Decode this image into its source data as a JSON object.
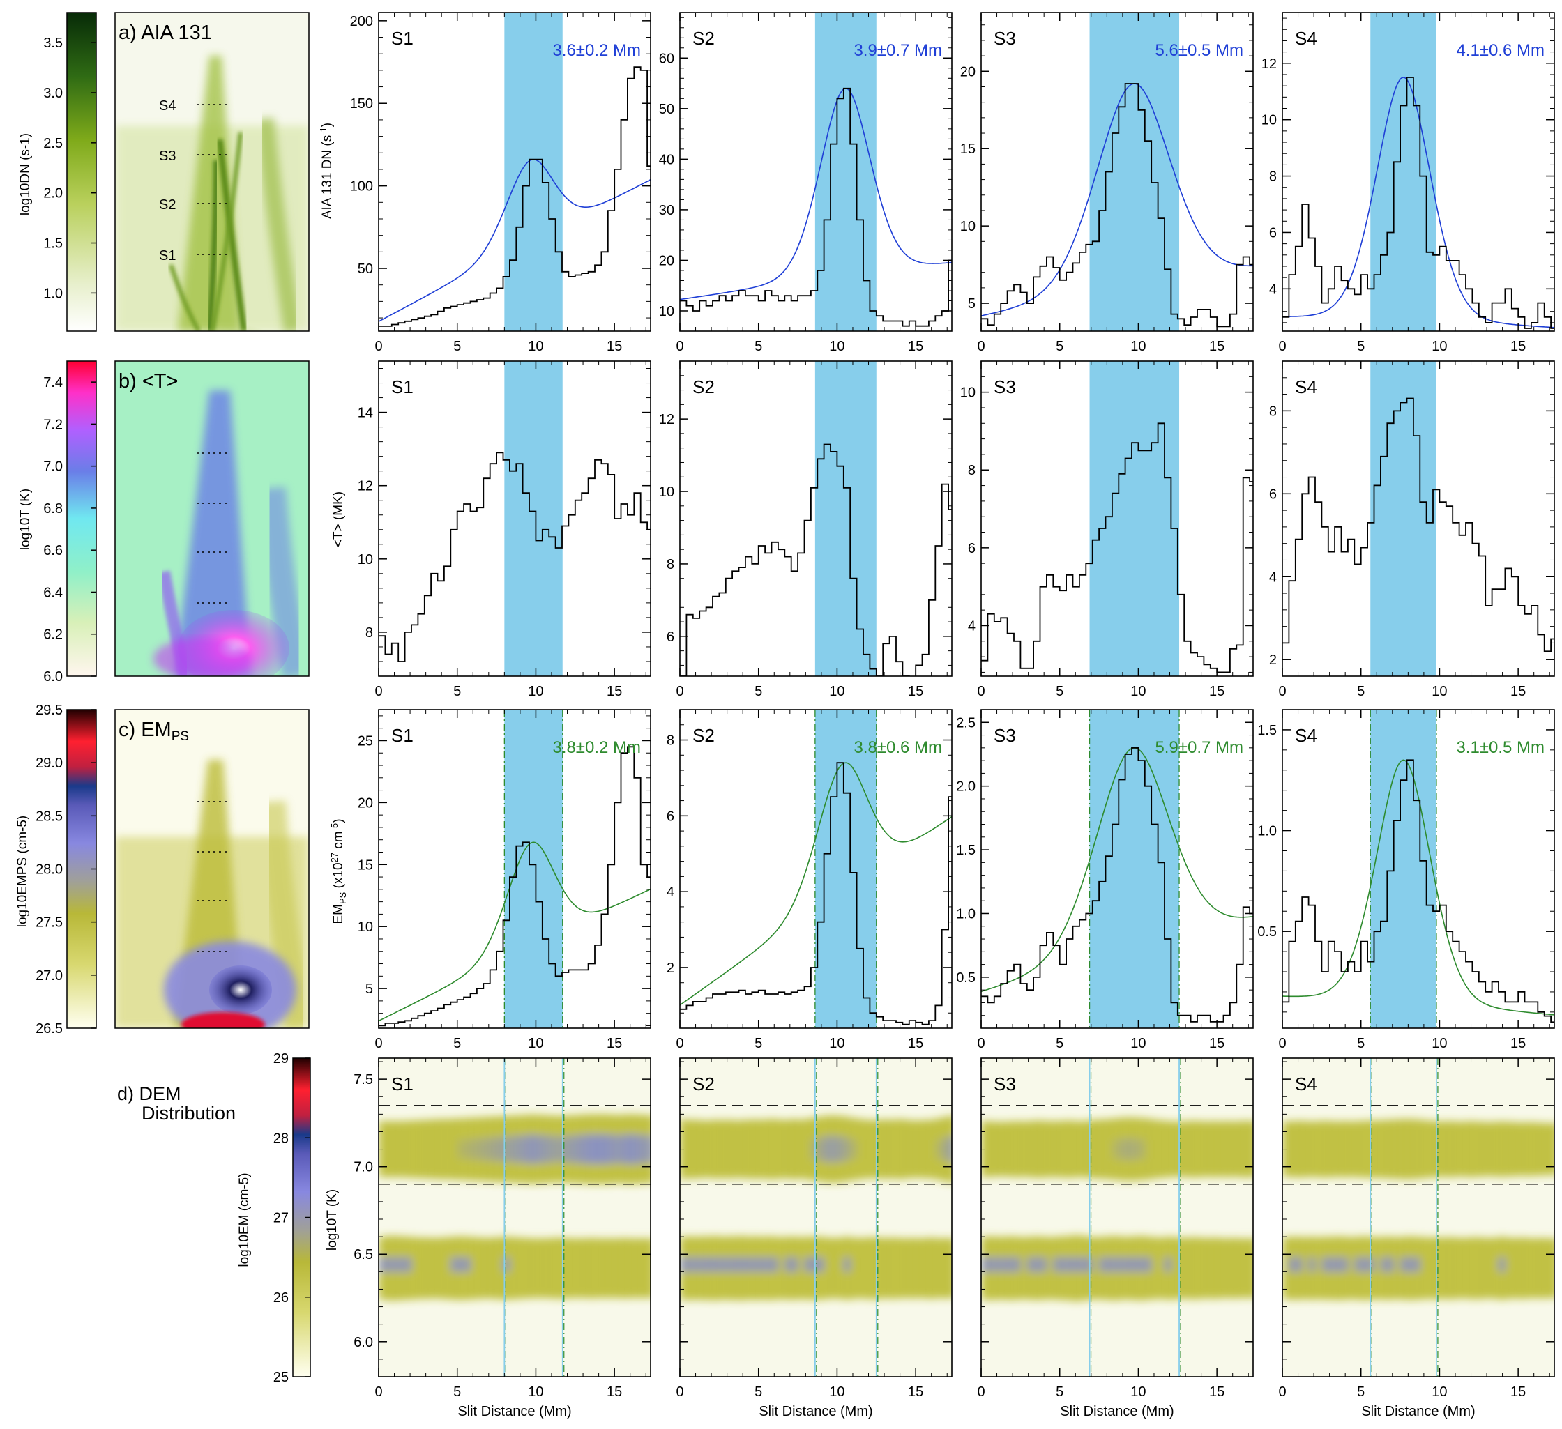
{
  "image_panels": {
    "a": {
      "label": "a) AIA 131",
      "colorbar_label": "log10DN (s-1)",
      "ticks": [
        "1.0",
        "1.5",
        "2.0",
        "2.5",
        "3.0",
        "3.5"
      ],
      "slits": [
        "S4",
        "S3",
        "S2",
        "S1"
      ]
    },
    "b": {
      "label": "b) <T>",
      "colorbar_label": "log10T (K)",
      "ticks": [
        "6.0",
        "6.2",
        "6.4",
        "6.6",
        "6.8",
        "7.0",
        "7.2",
        "7.4"
      ]
    },
    "c": {
      "label": "c) EMPS",
      "colorbar_label": "log10EMPS (cm-5)",
      "ticks": [
        "26.5",
        "27.0",
        "27.5",
        "28.0",
        "28.5",
        "29.0",
        "29.5"
      ]
    },
    "d": {
      "label_line1": "d) DEM",
      "label_line2": "Distribution",
      "colorbar_label": "log10EM (cm-5)",
      "ticks": [
        "25",
        "26",
        "27",
        "28",
        "29"
      ]
    }
  },
  "colors": {
    "band": "#87ceeb",
    "fit_blue": "#1f3fd6",
    "fit_green": "#2e8b2e",
    "dem_yellow": "#b8b828",
    "dem_blue": "#8088e0"
  },
  "row_labels": {
    "dn": "AIA 131 DN (s-1)",
    "t": "<T> (MK)",
    "em": "EMPS (x1027 cm-5)",
    "dem": "log10T (K)",
    "xlabel": "Slit Distance (Mm)"
  },
  "chart_data": {
    "x_ticks": [
      0,
      5,
      10,
      15
    ],
    "slits": [
      {
        "name": "S1",
        "band": [
          8.0,
          11.7
        ],
        "dn": {
          "ylim": [
            12,
            205
          ],
          "yticks": [
            50,
            100,
            150,
            200
          ],
          "width_label": "3.6±0.2 Mm",
          "values": [
            15,
            15,
            16,
            17,
            18,
            19,
            20,
            21,
            22,
            24,
            26,
            27,
            28,
            29,
            30,
            31,
            32,
            35,
            38,
            45,
            55,
            75,
            100,
            116,
            116,
            102,
            80,
            60,
            48,
            45,
            46,
            47,
            48,
            52,
            60,
            85,
            110,
            140,
            165,
            172,
            170,
            112
          ]
        },
        "t": {
          "ylim": [
            6.8,
            15.4
          ],
          "yticks": [
            8,
            10,
            12,
            14
          ],
          "values": [
            7.9,
            7.4,
            7.7,
            7.2,
            8.0,
            8.2,
            8.5,
            9.0,
            9.6,
            9.4,
            9.8,
            10.8,
            11.3,
            11.5,
            11.3,
            11.4,
            12.2,
            12.6,
            12.9,
            12.7,
            12.4,
            12.6,
            11.8,
            11.3,
            10.5,
            10.8,
            10.6,
            10.3,
            10.9,
            11.2,
            11.6,
            11.8,
            12.2,
            12.7,
            12.6,
            12.3,
            11.1,
            11.5,
            11.2,
            11.8,
            11.0,
            10.8
          ]
        },
        "em": {
          "ylim": [
            1.8,
            27.5
          ],
          "yticks": [
            5,
            10,
            15,
            20,
            25
          ],
          "width_label": "3.8±0.2 Mm",
          "values": [
            2.0,
            2.2,
            2.2,
            2.3,
            2.4,
            2.6,
            2.8,
            3.0,
            3.2,
            3.4,
            3.7,
            3.9,
            4.1,
            4.3,
            4.6,
            5.0,
            5.4,
            6.5,
            8.0,
            10.5,
            14.0,
            16.5,
            16.8,
            15.0,
            12.0,
            9.0,
            7.0,
            6.0,
            6.3,
            6.5,
            6.5,
            6.5,
            7.0,
            8.5,
            11.0,
            15.0,
            20.0,
            24.0,
            24.5,
            22.0,
            15.0,
            14.0
          ]
        },
        "dem": {
          "hot": [
            1.0,
            1.0,
            1.0,
            1.0,
            1.05,
            1.1,
            1.15,
            1.2,
            1.25,
            1.3,
            1.3,
            1.35,
            1.4,
            1.45,
            1.5,
            1.55,
            1.6,
            1.65,
            1.7,
            1.75,
            1.8,
            1.85,
            1.9,
            1.95,
            1.9,
            1.85,
            1.8,
            1.75,
            1.8,
            1.85,
            1.9,
            1.95,
            2.0,
            2.0,
            2.0,
            1.95,
            1.9,
            1.95,
            2.0,
            1.95,
            1.9,
            1.85
          ],
          "cool": [
            1.2,
            1.3,
            1.3,
            1.25,
            1.2,
            1.15,
            1.1,
            1.1,
            1.05,
            1.1,
            1.15,
            1.2,
            1.25,
            1.2,
            1.15,
            1.1,
            1.05,
            1.1,
            1.15,
            1.2,
            1.15,
            1.1,
            1.05,
            1.0,
            1.0,
            1.0,
            1.05,
            1.1,
            1.05,
            1.0,
            1.0,
            1.0,
            1.05,
            1.0,
            1.0,
            1.0,
            1.0,
            1.05,
            1.0,
            1.0,
            1.0,
            1.0
          ]
        }
      },
      {
        "name": "S2",
        "band": [
          8.6,
          12.5
        ],
        "dn": {
          "ylim": [
            6,
            69
          ],
          "yticks": [
            10,
            20,
            30,
            40,
            50,
            60
          ],
          "width_label": "3.9±0.7 Mm",
          "values": [
            12,
            11,
            10,
            12,
            11,
            12,
            13,
            12,
            13,
            14,
            13,
            13,
            12,
            14,
            13,
            12,
            13,
            12,
            13,
            13,
            14,
            18,
            28,
            43,
            52,
            54,
            43,
            28,
            16,
            10,
            9,
            8,
            8,
            8,
            7,
            8,
            7,
            7,
            8,
            9,
            10,
            20
          ]
        },
        "t": {
          "ylim": [
            4.9,
            13.6
          ],
          "yticks": [
            6,
            8,
            10,
            12
          ],
          "values": [
            4.9,
            6.6,
            6.5,
            6.7,
            6.8,
            7.1,
            7.2,
            7.6,
            7.8,
            7.9,
            8.2,
            8.0,
            8.5,
            8.3,
            8.6,
            8.4,
            8.2,
            7.8,
            8.3,
            9.2,
            10.1,
            10.9,
            11.3,
            11.1,
            10.7,
            10.1,
            7.6,
            6.2,
            5.5,
            5.1,
            4.9,
            5.8,
            6.0,
            5.3,
            4.9,
            4.8,
            5.2,
            5.5,
            7.0,
            8.5,
            10.2,
            9.5
          ]
        },
        "em": {
          "ylim": [
            0.4,
            8.8
          ],
          "yticks": [
            2,
            4,
            6,
            8
          ],
          "width_label": "3.8±0.6 Mm",
          "values": [
            0.9,
            1.0,
            1.1,
            1.1,
            1.2,
            1.3,
            1.3,
            1.35,
            1.35,
            1.4,
            1.3,
            1.35,
            1.4,
            1.3,
            1.3,
            1.35,
            1.3,
            1.35,
            1.4,
            1.5,
            2.0,
            3.2,
            5.0,
            6.5,
            7.4,
            6.6,
            4.5,
            2.5,
            1.2,
            0.8,
            0.7,
            0.6,
            0.6,
            0.55,
            0.5,
            0.6,
            0.55,
            0.5,
            0.6,
            1.0,
            3.0,
            6.5
          ]
        },
        "dem": {
          "hot": [
            1.3,
            1.2,
            1.2,
            1.1,
            1.1,
            1.2,
            1.15,
            1.2,
            1.1,
            1.15,
            1.2,
            1.25,
            1.2,
            1.3,
            1.3,
            1.2,
            1.2,
            1.3,
            1.2,
            1.35,
            1.5,
            1.65,
            1.8,
            1.8,
            1.75,
            1.6,
            1.45,
            1.3,
            1.2,
            1.15,
            1.2,
            1.25,
            1.2,
            1.3,
            1.2,
            1.1,
            1.1,
            1.15,
            1.2,
            1.4,
            1.6,
            1.8
          ],
          "cool": [
            1.2,
            1.25,
            1.2,
            1.25,
            1.25,
            1.3,
            1.2,
            1.25,
            1.25,
            1.3,
            1.2,
            1.25,
            1.2,
            1.25,
            1.2,
            1.15,
            1.2,
            1.2,
            1.15,
            1.2,
            1.2,
            1.2,
            1.1,
            1.05,
            1.1,
            1.2,
            1.1,
            1.05,
            1.1,
            1.15,
            1.1,
            1.05,
            1.1,
            1.05,
            1.0,
            1.05,
            1.0,
            1.05,
            1.1,
            1.0,
            1.05,
            1.0
          ]
        }
      },
      {
        "name": "S3",
        "band": [
          6.9,
          12.6
        ],
        "dn": {
          "ylim": [
            3.2,
            23.8
          ],
          "yticks": [
            5,
            10,
            15,
            20
          ],
          "width_label": "5.6±0.5 Mm",
          "values": [
            4.0,
            3.6,
            4.3,
            5.0,
            5.8,
            6.2,
            5.7,
            5.0,
            6.7,
            7.4,
            8.0,
            7.3,
            6.5,
            7.0,
            7.6,
            8.3,
            8.8,
            9.0,
            11.0,
            13.5,
            16.0,
            17.7,
            19.2,
            19.2,
            17.5,
            15.5,
            12.8,
            10.5,
            7.2,
            4.3,
            4.0,
            3.6,
            4.1,
            4.6,
            4.6,
            4.1,
            3.5,
            3.5,
            4.3,
            7.5,
            8.0,
            7.5
          ]
        },
        "t": {
          "ylim": [
            2.7,
            10.8
          ],
          "yticks": [
            4,
            6,
            8,
            10
          ],
          "values": [
            3.1,
            4.3,
            4.1,
            4.2,
            3.8,
            3.6,
            2.9,
            2.9,
            3.6,
            5.0,
            5.3,
            5.0,
            4.9,
            5.3,
            5.0,
            5.3,
            5.6,
            6.2,
            6.5,
            6.8,
            7.4,
            7.9,
            8.3,
            8.7,
            8.5,
            8.5,
            8.7,
            9.2,
            7.8,
            6.5,
            4.8,
            3.6,
            3.3,
            3.2,
            3.0,
            2.9,
            2.8,
            2.8,
            3.4,
            3.5,
            7.8,
            7.7
          ]
        },
        "em": {
          "ylim": [
            0.1,
            2.6
          ],
          "yticks": [
            0.5,
            1.0,
            1.5,
            2.0,
            2.5
          ],
          "width_label": "5.9±0.7 Mm",
          "values": [
            0.35,
            0.3,
            0.35,
            0.45,
            0.55,
            0.6,
            0.45,
            0.4,
            0.5,
            0.75,
            0.85,
            0.75,
            0.6,
            0.8,
            0.9,
            0.95,
            1.0,
            1.1,
            1.25,
            1.45,
            1.7,
            2.05,
            2.25,
            2.3,
            2.2,
            2.0,
            1.7,
            1.4,
            0.8,
            0.3,
            0.2,
            0.2,
            0.15,
            0.2,
            0.2,
            0.15,
            0.15,
            0.2,
            0.3,
            0.6,
            1.05,
            1.0
          ]
        },
        "dem": {
          "hot": [
            1.0,
            0.95,
            0.9,
            0.9,
            0.95,
            1.0,
            0.95,
            1.0,
            1.1,
            1.05,
            1.0,
            1.0,
            1.05,
            1.1,
            1.0,
            1.0,
            1.1,
            1.2,
            1.25,
            1.3,
            1.4,
            1.5,
            1.55,
            1.5,
            1.45,
            1.35,
            1.2,
            1.1,
            1.0,
            0.95,
            0.95,
            1.0,
            1.05,
            1.0,
            0.95,
            1.0,
            0.95,
            1.0,
            0.95,
            1.0,
            1.05,
            1.0
          ],
          "cool": [
            1.2,
            1.25,
            1.2,
            1.2,
            1.25,
            1.2,
            1.15,
            1.2,
            1.25,
            1.2,
            1.15,
            1.2,
            1.25,
            1.3,
            1.4,
            1.3,
            1.2,
            1.15,
            1.2,
            1.25,
            1.3,
            1.2,
            1.2,
            1.25,
            1.3,
            1.2,
            1.15,
            1.1,
            1.2,
            1.15,
            1.1,
            1.1,
            1.15,
            1.1,
            1.05,
            1.1,
            1.05,
            1.0,
            1.05,
            1.0,
            1.0,
            1.0
          ]
        }
      },
      {
        "name": "S4",
        "band": [
          5.6,
          9.8
        ],
        "dn": {
          "ylim": [
            2.5,
            13.8
          ],
          "yticks": [
            4,
            6,
            8,
            10,
            12
          ],
          "width_label": "4.1±0.6 Mm",
          "values": [
            3.0,
            4.5,
            5.5,
            7.0,
            5.8,
            4.8,
            3.5,
            4.0,
            4.8,
            4.3,
            4.0,
            3.8,
            4.5,
            4.0,
            4.5,
            5.2,
            6.0,
            8.5,
            10.5,
            11.5,
            10.5,
            8.0,
            5.3,
            5.2,
            5.5,
            5.0,
            5.0,
            4.5,
            4.0,
            3.5,
            3.0,
            2.8,
            3.5,
            3.5,
            4.0,
            3.3,
            3.0,
            2.6,
            2.8,
            3.5,
            3.0,
            2.6
          ]
        },
        "t": {
          "ylim": [
            1.6,
            9.2
          ],
          "yticks": [
            2,
            4,
            6,
            8
          ],
          "values": [
            2.4,
            3.9,
            4.9,
            6.0,
            6.4,
            5.8,
            5.2,
            4.6,
            5.2,
            4.6,
            4.9,
            4.3,
            4.7,
            5.3,
            6.2,
            6.9,
            7.7,
            8.0,
            8.2,
            8.3,
            7.4,
            5.8,
            5.3,
            6.1,
            5.8,
            5.7,
            5.3,
            5.0,
            5.3,
            4.8,
            4.5,
            3.3,
            3.7,
            3.7,
            4.2,
            4.0,
            3.3,
            3.1,
            3.3,
            2.6,
            2.2,
            2.5
          ]
        },
        "em": {
          "ylim": [
            0.02,
            1.6
          ],
          "yticks": [
            0.5,
            1.0,
            1.5
          ],
          "width_label": "3.1±0.5 Mm",
          "values": [
            0.15,
            0.45,
            0.55,
            0.67,
            0.63,
            0.45,
            0.3,
            0.45,
            0.4,
            0.3,
            0.35,
            0.3,
            0.45,
            0.35,
            0.5,
            0.55,
            0.8,
            1.05,
            1.25,
            1.35,
            1.15,
            0.85,
            0.63,
            0.6,
            0.63,
            0.5,
            0.45,
            0.4,
            0.35,
            0.3,
            0.25,
            0.2,
            0.25,
            0.2,
            0.15,
            0.15,
            0.2,
            0.15,
            0.15,
            0.1,
            0.08,
            0.05
          ]
        },
        "dem": {
          "hot": [
            0.95,
            1.0,
            1.05,
            1.0,
            0.95,
            1.0,
            1.05,
            1.0,
            0.95,
            1.0,
            0.95,
            1.0,
            1.05,
            1.1,
            1.1,
            1.15,
            1.2,
            1.25,
            1.3,
            1.3,
            1.25,
            1.15,
            1.05,
            1.0,
            0.95,
            1.0,
            0.95,
            0.9,
            1.0,
            0.95,
            0.9,
            0.85,
            0.9,
            0.95,
            0.9,
            0.85,
            0.8,
            0.85,
            0.8,
            0.75,
            0.7,
            0.7
          ],
          "cool": [
            1.15,
            1.2,
            1.2,
            1.15,
            1.2,
            1.15,
            1.2,
            1.2,
            1.25,
            1.2,
            1.15,
            1.2,
            1.25,
            1.2,
            1.15,
            1.2,
            1.2,
            1.15,
            1.2,
            1.25,
            1.2,
            1.15,
            1.1,
            1.15,
            1.1,
            1.15,
            1.1,
            1.05,
            1.1,
            1.15,
            1.1,
            1.05,
            1.1,
            1.2,
            1.1,
            1.05,
            1.1,
            1.05,
            1.0,
            1.05,
            1.0,
            1.0
          ]
        }
      }
    ]
  }
}
